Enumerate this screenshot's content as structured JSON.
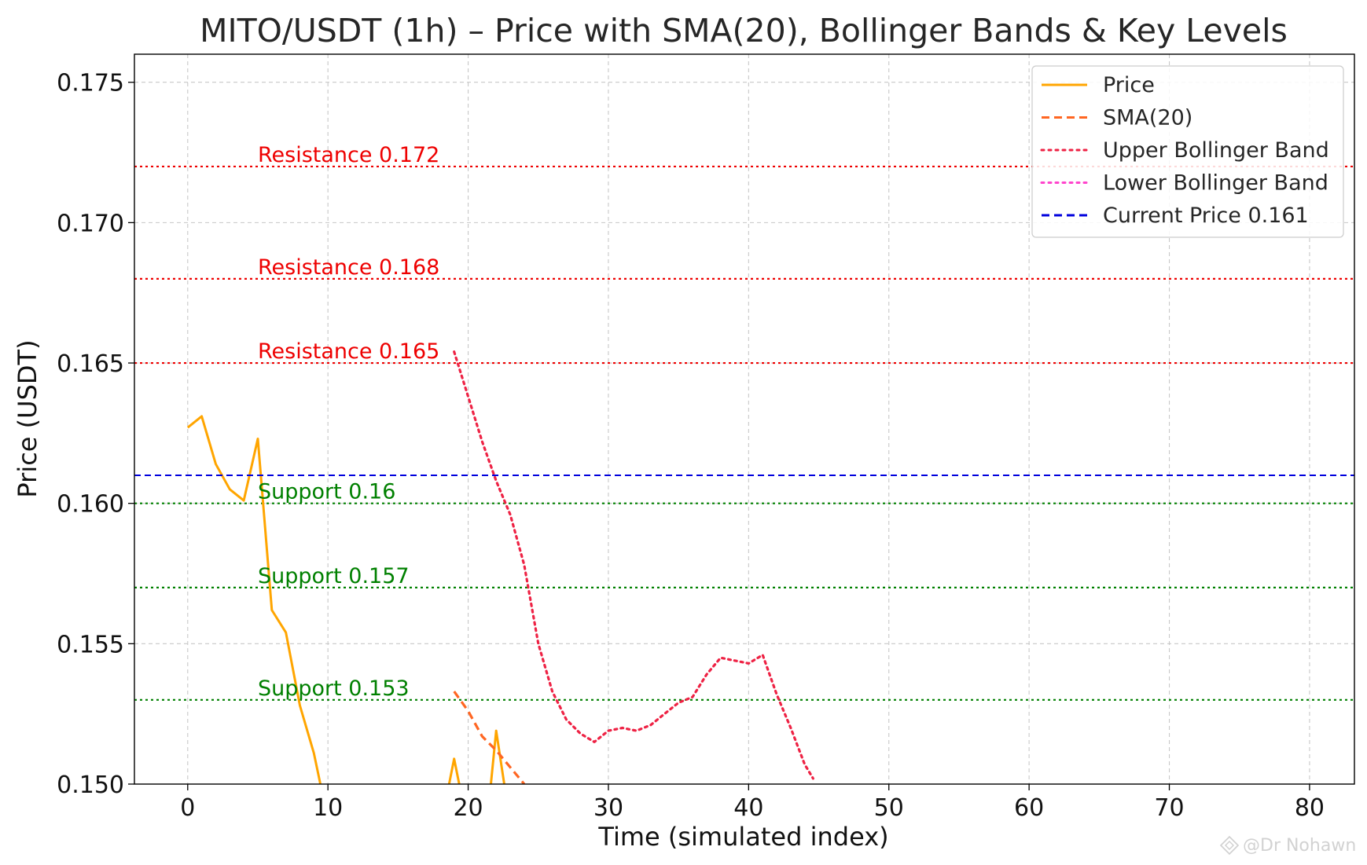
{
  "chart_data": {
    "type": "line",
    "title": "MITO/USDT (1h) – Price with SMA(20), Bollinger Bands & Key Levels",
    "xlabel": "Time (simulated index)",
    "ylabel": "Price (USDT)",
    "xlim": [
      -3.8,
      83.2
    ],
    "ylim": [
      0.15,
      0.176
    ],
    "xticks": [
      0,
      10,
      20,
      30,
      40,
      50,
      60,
      70,
      80
    ],
    "xtick_labels": [
      "0",
      "10",
      "20",
      "30",
      "40",
      "50",
      "60",
      "70",
      "80"
    ],
    "yticks": [
      0.15,
      0.155,
      0.16,
      0.165,
      0.17,
      0.175
    ],
    "ytick_labels": [
      "0.150",
      "0.155",
      "0.160",
      "0.165",
      "0.170",
      "0.175"
    ],
    "grid": true,
    "legend_position": "top-right",
    "series": [
      {
        "name": "Price",
        "color": "#FFA500",
        "style": "solid",
        "x": [
          0,
          1,
          2,
          3,
          4,
          5,
          6,
          7,
          8,
          9,
          9.5,
          18.6,
          19,
          19.4,
          21.6,
          22,
          22.6
        ],
        "y": [
          0.1627,
          0.1631,
          0.1614,
          0.1605,
          0.1601,
          0.1623,
          0.1562,
          0.1554,
          0.1528,
          0.1511,
          0.1499,
          0.1499,
          0.1509,
          0.1499,
          0.1499,
          0.1519,
          0.1499
        ]
      },
      {
        "name": "SMA(20)",
        "color": "#FF6622",
        "style": "dashed",
        "x": [
          19,
          20,
          21,
          22,
          23,
          24
        ],
        "y": [
          0.1533,
          0.1526,
          0.1517,
          0.1512,
          0.1506,
          0.15
        ]
      },
      {
        "name": "Upper Bollinger Band",
        "color": "#EE2244",
        "style": "dotted",
        "x": [
          19,
          20,
          21,
          22,
          23,
          24,
          25,
          26,
          27,
          28,
          29,
          30,
          31,
          32,
          33,
          34,
          35,
          36,
          37,
          38,
          39,
          40,
          41,
          42,
          43,
          44,
          44.6
        ],
        "y": [
          0.1654,
          0.1638,
          0.1622,
          0.1608,
          0.1596,
          0.1578,
          0.155,
          0.1533,
          0.1523,
          0.1518,
          0.1515,
          0.1519,
          0.152,
          0.1519,
          0.1521,
          0.1525,
          0.1529,
          0.1531,
          0.1539,
          0.1545,
          0.1544,
          0.1543,
          0.1546,
          0.1532,
          0.152,
          0.1507,
          0.1502
        ]
      },
      {
        "name": "Lower Bollinger Band",
        "color": "#FF44CC",
        "style": "dotted",
        "x": [],
        "y": []
      },
      {
        "name": "Current Price 0.161",
        "color": "#0000DD",
        "style": "dashed",
        "hline": 0.161
      }
    ],
    "levels": [
      {
        "label": "Resistance 0.172",
        "value": 0.172,
        "color": "#EE0000"
      },
      {
        "label": "Resistance 0.168",
        "value": 0.168,
        "color": "#EE0000"
      },
      {
        "label": "Resistance 0.165",
        "value": 0.165,
        "color": "#EE0000"
      },
      {
        "label": "Support 0.16",
        "value": 0.16,
        "color": "#008000"
      },
      {
        "label": "Support 0.157",
        "value": 0.157,
        "color": "#008000"
      },
      {
        "label": "Support 0.153",
        "value": 0.153,
        "color": "#008000"
      }
    ],
    "level_label_x": 5
  },
  "watermark": {
    "text": "@Dr Nohawn"
  }
}
